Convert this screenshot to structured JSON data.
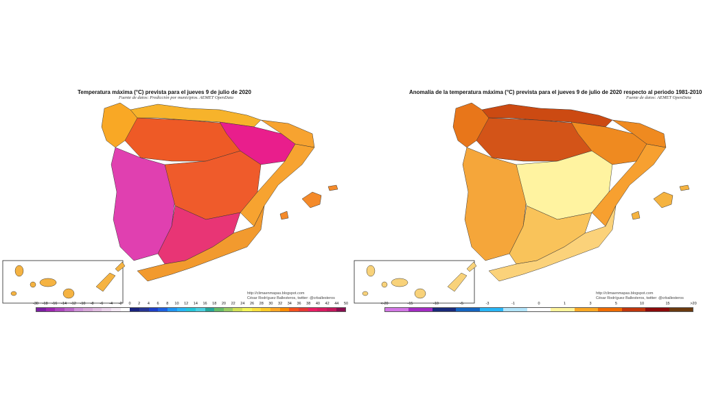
{
  "maps": [
    {
      "title": "Temperatura máxima (°C) prevista para el jueves 9 de julio de 2020",
      "source": "Fuente de datos: Predicción por municipios. AEMET OpenData",
      "credit_line1": "http://climaenmapas.blogspot.com",
      "credit_line2": "César Rodríguez Ballesteros, twitter: @crballesteros",
      "legend_ticks": [
        "-30",
        "-18",
        "-16",
        "-14",
        "-12",
        "-10",
        "-8",
        "-6",
        "-4",
        "-2",
        "0",
        "2",
        "4",
        "6",
        "8",
        "10",
        "12",
        "14",
        "16",
        "18",
        "20",
        "22",
        "24",
        "26",
        "28",
        "30",
        "32",
        "34",
        "36",
        "38",
        "40",
        "42",
        "44",
        "50"
      ],
      "legend_colors": [
        "#7b1fa2",
        "#9c27b0",
        "#ab47bc",
        "#ba68c8",
        "#ce93d8",
        "#d7a8d8",
        "#e0bde0",
        "#ead3ea",
        "#f4e9f4",
        "#ffffff",
        "#1a237e",
        "#283593",
        "#1e40c8",
        "#1e60e0",
        "#2196f3",
        "#29b6f6",
        "#26c6da",
        "#4dd0e1",
        "#26a69a",
        "#66bb6a",
        "#9ccc65",
        "#d4e157",
        "#f5f55a",
        "#fde040",
        "#ffca28",
        "#ffa726",
        "#fb8c00",
        "#f4511e",
        "#e53935",
        "#e91e63",
        "#d81b60",
        "#c2185b",
        "#880e4f"
      ],
      "region_colors": {
        "north_coast": "#f7b32b",
        "galicia": "#f9a825",
        "north_interior": "#ee5a26",
        "ebro": "#e91e8c",
        "west": "#e040b0",
        "center": "#ef5b2b",
        "south": "#e83575",
        "east_coast": "#f7a330",
        "southeast": "#f29a2e",
        "baleares": "#f48a2a",
        "canarias": "#f5b342"
      }
    },
    {
      "title": "Anomalía de la temperatura máxima (°C) prevista para el jueves 9 de julio de 2020 respecto al periodo 1981-2010",
      "source": "Fuente de datos: AEMET OpenData",
      "credit_line1": "http://climaenmapas.blogspot.com",
      "credit_line2": "César Rodríguez Ballesteros, twitter: @crballesteros",
      "legend_ticks": [
        "<-20",
        "-15",
        "-10",
        "-5",
        "-3",
        "-1",
        "0",
        "1",
        "3",
        "5",
        "10",
        "15",
        ">20"
      ],
      "legend_colors": [
        "#d277e5",
        "#a32cc4",
        "#1a2a7a",
        "#1565c0",
        "#29b6f6",
        "#b3e5fc",
        "#ffffff",
        "#fff59d",
        "#f9a825",
        "#ef6c00",
        "#c0360c",
        "#8b0a0a",
        "#6b3a0f"
      ],
      "region_colors": {
        "north_coast": "#cc4a12",
        "galicia": "#e8761a",
        "north_interior": "#d35418",
        "ebro": "#ef8a20",
        "west": "#f5a63a",
        "center": "#fff3a0",
        "south": "#f9c35a",
        "east_coast": "#f7a030",
        "southeast": "#fbd27a",
        "baleares": "#f5b340",
        "canarias": "#f8d27a"
      }
    }
  ]
}
